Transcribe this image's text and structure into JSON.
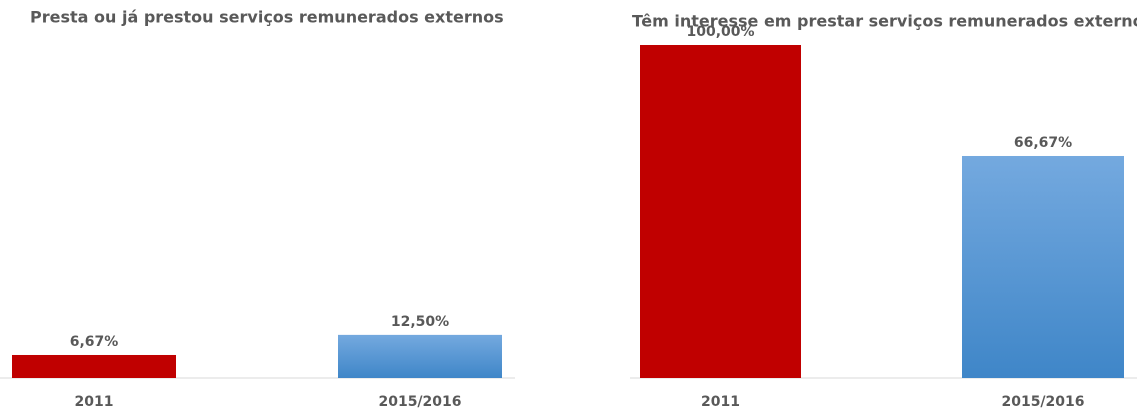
{
  "chart_data": [
    {
      "type": "bar",
      "title": "Presta ou já prestou serviços remunerados externos",
      "categories": [
        "2011",
        "2015/2016"
      ],
      "values": [
        6.67,
        12.5
      ],
      "value_labels": [
        "6,67%",
        "12,50%"
      ],
      "colors": [
        "#c00000",
        "#5b9bd5"
      ],
      "ylim": [
        0,
        100
      ]
    },
    {
      "type": "bar",
      "title": "Têm interesse em prestar serviços remunerados externos",
      "categories": [
        "2011",
        "2015/2016"
      ],
      "values": [
        100,
        66.67
      ],
      "value_labels": [
        "100,00%",
        "66,67%"
      ],
      "colors": [
        "#c00000",
        "#5b9bd5"
      ],
      "ylim": [
        0,
        100
      ]
    }
  ]
}
